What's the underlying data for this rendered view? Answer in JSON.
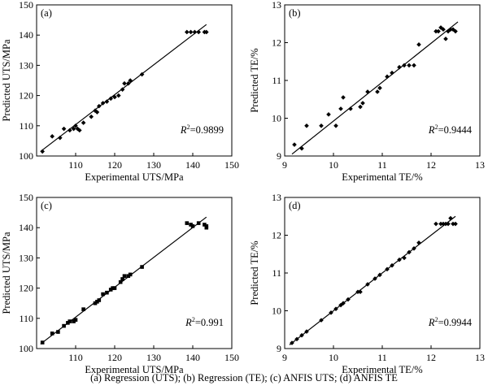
{
  "caption": "(a) Regression (UTS); (b) Regression (TE); (c) ANFIS UTS; (d) ANFIS TE",
  "chart_data": [
    {
      "type": "scatter",
      "panel_label": "(a)",
      "xlabel": "Experimental UTS/MPa",
      "ylabel": "Predicted UTS/MPa",
      "xlim": [
        100,
        150
      ],
      "ylim": [
        100,
        150
      ],
      "xticks": [
        110,
        120,
        130,
        140,
        150
      ],
      "yticks": [
        100,
        110,
        120,
        130,
        140,
        150
      ],
      "annotation": {
        "r2_value": "=0.9899"
      },
      "fit_line": {
        "x": [
          101,
          143.5
        ],
        "y": [
          101.5,
          143.5
        ]
      },
      "marker": "diamond",
      "points": {
        "x": [
          101.5,
          104,
          106,
          107,
          108.5,
          109.5,
          110,
          110.5,
          111,
          112,
          114,
          115,
          115.5,
          116,
          117,
          118,
          119,
          120,
          121,
          122,
          122.5,
          123.5,
          124,
          127,
          138.5,
          139.5,
          140.5,
          141.5,
          143,
          143.5
        ],
        "y": [
          101.5,
          106.5,
          106,
          109,
          108.5,
          109,
          110,
          109,
          108.5,
          111,
          113,
          115,
          114.5,
          116.5,
          117.5,
          118,
          119,
          119.5,
          120,
          122,
          124,
          124,
          125,
          127,
          141,
          141,
          141,
          141,
          141,
          141
        ]
      }
    },
    {
      "type": "scatter",
      "panel_label": "(b)",
      "xlabel": "Experimental TE/%",
      "ylabel": "Predicted TE/%",
      "xlim": [
        9,
        13
      ],
      "ylim": [
        9,
        13
      ],
      "xticks": [
        9,
        10,
        11,
        12,
        13
      ],
      "yticks": [
        9,
        10,
        11,
        12,
        13
      ],
      "annotation": {
        "r2_value": "=0.9444"
      },
      "fit_line": {
        "x": [
          9.15,
          12.55
        ],
        "y": [
          9.05,
          12.55
        ]
      },
      "marker": "diamond",
      "points": {
        "x": [
          9.2,
          9.35,
          9.45,
          9.75,
          9.9,
          10.05,
          10.15,
          10.2,
          10.35,
          10.55,
          10.6,
          10.7,
          10.9,
          10.95,
          11.1,
          11.2,
          11.35,
          11.45,
          11.55,
          11.65,
          11.75,
          12.1,
          12.15,
          12.2,
          12.25,
          12.3,
          12.35,
          12.4,
          12.45,
          12.5
        ],
        "y": [
          9.3,
          9.2,
          9.8,
          9.8,
          10.1,
          9.8,
          10.25,
          10.55,
          10.25,
          10.3,
          10.4,
          10.7,
          10.7,
          10.8,
          11.1,
          11.2,
          11.35,
          11.4,
          11.4,
          11.4,
          11.95,
          12.3,
          12.3,
          12.4,
          12.35,
          12.1,
          12.3,
          12.35,
          12.35,
          12.3
        ]
      }
    },
    {
      "type": "scatter",
      "panel_label": "(c)",
      "xlabel": "Experimental UTS/MPa",
      "ylabel": "Predicted UTS/MPa",
      "xlim": [
        100,
        150
      ],
      "ylim": [
        100,
        150
      ],
      "xticks": [
        110,
        120,
        130,
        140,
        150
      ],
      "yticks": [
        100,
        110,
        120,
        130,
        140,
        150
      ],
      "annotation": {
        "r2_value": "=0.991"
      },
      "fit_line": {
        "x": [
          101,
          143.5
        ],
        "y": [
          101.5,
          143.5
        ]
      },
      "marker": "square",
      "points": {
        "x": [
          101.5,
          104,
          105.5,
          107,
          108,
          108.5,
          109.5,
          110,
          112,
          115,
          115.5,
          116,
          117,
          118,
          119,
          119.5,
          120,
          121.5,
          122,
          122.5,
          123.5,
          124,
          127,
          138.5,
          139.5,
          140,
          141.5,
          143,
          143.5,
          143.5
        ],
        "y": [
          102,
          105,
          105.5,
          107.5,
          108.5,
          109,
          109,
          109.5,
          113,
          115,
          115.5,
          116,
          118,
          118.5,
          119.5,
          120,
          120,
          122,
          123,
          124,
          124,
          124.5,
          127,
          141.5,
          141,
          140.5,
          141.5,
          141,
          140.5,
          140
        ]
      }
    },
    {
      "type": "scatter",
      "panel_label": "(d)",
      "xlabel": "Experimental TE/%",
      "ylabel": "Predicted TE/%",
      "xlim": [
        9,
        13
      ],
      "ylim": [
        9,
        13
      ],
      "xticks": [
        9,
        10,
        11,
        12,
        13
      ],
      "yticks": [
        9,
        10,
        11,
        12,
        13
      ],
      "annotation": {
        "r2_value": "=0.9944"
      },
      "fit_line": {
        "x": [
          9.1,
          12.5
        ],
        "y": [
          9.1,
          12.5
        ]
      },
      "marker": "diamond",
      "points": {
        "x": [
          9.15,
          9.25,
          9.35,
          9.45,
          9.75,
          9.95,
          10.05,
          10.15,
          10.2,
          10.3,
          10.5,
          10.55,
          10.7,
          10.85,
          10.95,
          11.1,
          11.2,
          11.35,
          11.45,
          11.55,
          11.65,
          11.75,
          12.1,
          12.2,
          12.25,
          12.3,
          12.35,
          12.4,
          12.45,
          12.5
        ],
        "y": [
          9.15,
          9.25,
          9.35,
          9.45,
          9.75,
          9.95,
          10.05,
          10.15,
          10.2,
          10.3,
          10.5,
          10.5,
          10.7,
          10.85,
          10.95,
          11.1,
          11.2,
          11.35,
          11.4,
          11.55,
          11.65,
          11.8,
          12.3,
          12.3,
          12.3,
          12.3,
          12.3,
          12.45,
          12.3,
          12.3
        ]
      }
    }
  ]
}
